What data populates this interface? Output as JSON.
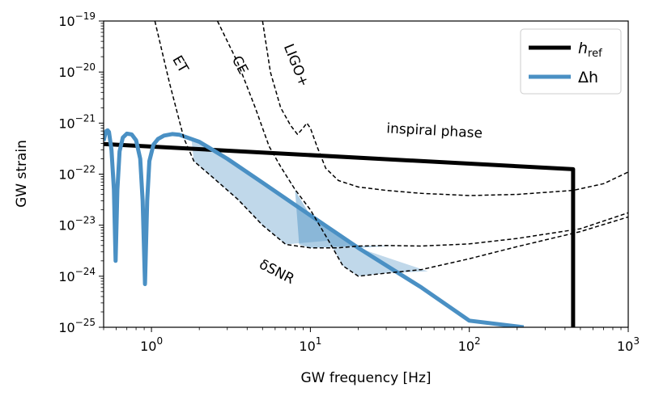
{
  "chart_data": {
    "type": "line",
    "xlabel": "GW frequency [Hz]",
    "ylabel": "GW strain",
    "xscale": "log",
    "yscale": "log",
    "xlim": [
      0.5,
      1000
    ],
    "ylim": [
      1e-25,
      1e-19
    ],
    "x_ticks": [
      {
        "value": 1,
        "base": "10",
        "exp": "0"
      },
      {
        "value": 10,
        "base": "10",
        "exp": "1"
      },
      {
        "value": 100,
        "base": "10",
        "exp": "2"
      },
      {
        "value": 1000,
        "base": "10",
        "exp": "3"
      }
    ],
    "y_ticks": [
      {
        "value": 1e-25,
        "base": "10",
        "exp": "−25"
      },
      {
        "value": 1e-24,
        "base": "10",
        "exp": "−24"
      },
      {
        "value": 1e-23,
        "base": "10",
        "exp": "−23"
      },
      {
        "value": 1e-22,
        "base": "10",
        "exp": "−22"
      },
      {
        "value": 1e-21,
        "base": "10",
        "exp": "−21"
      },
      {
        "value": 1e-20,
        "base": "10",
        "exp": "−20"
      },
      {
        "value": 1e-19,
        "base": "10",
        "exp": "−19"
      }
    ],
    "legend": {
      "placement": "top-right",
      "entries": [
        {
          "symbol": "h",
          "subscript": "ref",
          "color": "#000000"
        },
        {
          "symbol": "Δh",
          "subscript": "",
          "color": "#4a90c4"
        }
      ]
    },
    "series": [
      {
        "role": "h_ref",
        "color": "#000000",
        "style": "solid-thick",
        "points": [
          [
            0.5,
            3.9e-22
          ],
          [
            450,
            1.25e-22
          ],
          [
            450,
            1e-25
          ]
        ]
      },
      {
        "role": "delta_h",
        "color": "#4a90c4",
        "style": "solid-thick",
        "points": [
          [
            0.5,
            4.5e-22
          ],
          [
            0.51,
            5.8e-22
          ],
          [
            0.52,
            7e-22
          ],
          [
            0.53,
            7.2e-22
          ],
          [
            0.54,
            6.7e-22
          ],
          [
            0.56,
            3e-22
          ],
          [
            0.58,
            5e-23
          ],
          [
            0.595,
            2e-24
          ],
          [
            0.61,
            5e-23
          ],
          [
            0.63,
            2.8e-22
          ],
          [
            0.66,
            5.2e-22
          ],
          [
            0.7,
            6.2e-22
          ],
          [
            0.75,
            6e-22
          ],
          [
            0.8,
            4.6e-22
          ],
          [
            0.85,
            2e-22
          ],
          [
            0.88,
            3e-23
          ],
          [
            0.91,
            7e-25
          ],
          [
            0.94,
            3e-23
          ],
          [
            0.97,
            1.8e-22
          ],
          [
            1.03,
            3.8e-22
          ],
          [
            1.1,
            4.9e-22
          ],
          [
            1.2,
            5.7e-22
          ],
          [
            1.35,
            6.1e-22
          ],
          [
            1.5,
            5.9e-22
          ],
          [
            2,
            4.3e-22
          ],
          [
            3,
            2e-22
          ],
          [
            5,
            6.8e-23
          ],
          [
            10,
            1.55e-23
          ],
          [
            20,
            3.6e-24
          ],
          [
            50,
            6e-25
          ],
          [
            100,
            1.35e-25
          ],
          [
            220,
            1e-25
          ]
        ]
      },
      {
        "name": "ET",
        "color": "#000000",
        "style": "dashed",
        "points": [
          [
            1.05,
            1e-19
          ],
          [
            1.3,
            6e-21
          ],
          [
            1.6,
            5e-22
          ],
          [
            1.85,
            1.8e-22
          ],
          [
            2.5,
            8e-23
          ],
          [
            3.5,
            3.2e-23
          ],
          [
            5,
            1e-23
          ],
          [
            7,
            4.2e-24
          ],
          [
            10,
            3.6e-24
          ],
          [
            15,
            3.6e-24
          ],
          [
            20,
            3.9e-24
          ],
          [
            30,
            4e-24
          ],
          [
            50,
            3.9e-24
          ],
          [
            100,
            4.3e-24
          ],
          [
            200,
            5.5e-24
          ],
          [
            500,
            8.5e-24
          ],
          [
            1000,
            1.75e-23
          ]
        ]
      },
      {
        "name": "CE",
        "color": "#000000",
        "style": "dashed",
        "points": [
          [
            2.6,
            1e-19
          ],
          [
            3.5,
            1.5e-20
          ],
          [
            4.5,
            2e-21
          ],
          [
            5.5,
            3.5e-22
          ],
          [
            6.5,
            1.4e-22
          ],
          [
            8,
            5e-23
          ],
          [
            10,
            2e-23
          ],
          [
            13,
            5e-24
          ],
          [
            16,
            1.6e-24
          ],
          [
            20,
            1e-24
          ],
          [
            30,
            1.15e-24
          ],
          [
            50,
            1.35e-24
          ],
          [
            100,
            2.2e-24
          ],
          [
            200,
            3.8e-24
          ],
          [
            500,
            7.5e-24
          ],
          [
            1000,
            1.45e-23
          ]
        ]
      },
      {
        "name": "LIGO+",
        "color": "#000000",
        "style": "dashed",
        "points": [
          [
            5.0,
            1e-19
          ],
          [
            5.6,
            1e-20
          ],
          [
            6.5,
            2e-21
          ],
          [
            7.5,
            9e-22
          ],
          [
            8.3,
            6e-22
          ],
          [
            9.0,
            8e-22
          ],
          [
            9.5,
            1e-21
          ],
          [
            10,
            8e-22
          ],
          [
            11,
            3.5e-22
          ],
          [
            12.5,
            1.3e-22
          ],
          [
            15,
            7.5e-23
          ],
          [
            20,
            5.6e-23
          ],
          [
            30,
            4.8e-23
          ],
          [
            50,
            4.2e-23
          ],
          [
            100,
            3.8e-23
          ],
          [
            200,
            4e-23
          ],
          [
            450,
            4.8e-23
          ],
          [
            700,
            6.5e-23
          ],
          [
            1000,
            1.1e-22
          ]
        ]
      }
    ],
    "shaded_regions": [
      {
        "color": "#4a90c4",
        "opacity": 0.35,
        "points": [
          [
            1.78,
            5.1e-22
          ],
          [
            5,
            6.8e-23
          ],
          [
            10,
            1.55e-23
          ],
          [
            20,
            3.6e-24
          ],
          [
            55,
            1.25e-24
          ],
          [
            30,
            1.15e-24
          ],
          [
            20,
            1e-24
          ],
          [
            16,
            1.6e-24
          ],
          [
            13,
            5e-24
          ],
          [
            7,
            4.2e-24
          ],
          [
            5,
            1e-23
          ],
          [
            3.5,
            3.2e-23
          ],
          [
            2.5,
            8e-23
          ],
          [
            1.85,
            1.8e-22
          ]
        ]
      },
      {
        "color": "#4a90c4",
        "opacity": 0.45,
        "points": [
          [
            6.0,
            2.1e-22
          ],
          [
            10,
            1.55e-23
          ],
          [
            20,
            3.6e-24
          ],
          [
            35,
            4e-24
          ],
          [
            20,
            3.9e-24
          ],
          [
            10,
            3.6e-24
          ],
          [
            8.5,
            4.2e-24
          ],
          [
            8,
            5e-23
          ],
          [
            6.5,
            1.4e-22
          ]
        ]
      }
    ],
    "annotations": [
      {
        "text": "ET",
        "x": 1.35,
        "y": 1.8e-20,
        "rotate": 60
      },
      {
        "text": "CE",
        "x": 3.2,
        "y": 1.8e-20,
        "rotate": 62
      },
      {
        "text": "LIGO+",
        "x": 6.8,
        "y": 3.2e-20,
        "rotate": 68
      },
      {
        "text": "inspiral phase",
        "x": 30,
        "y": 6.5e-22,
        "rotate": 3
      },
      {
        "text": "δSNR",
        "x": 4.7,
        "y": 1.5e-24,
        "rotate": 27,
        "color": "#2b74b3"
      }
    ]
  }
}
